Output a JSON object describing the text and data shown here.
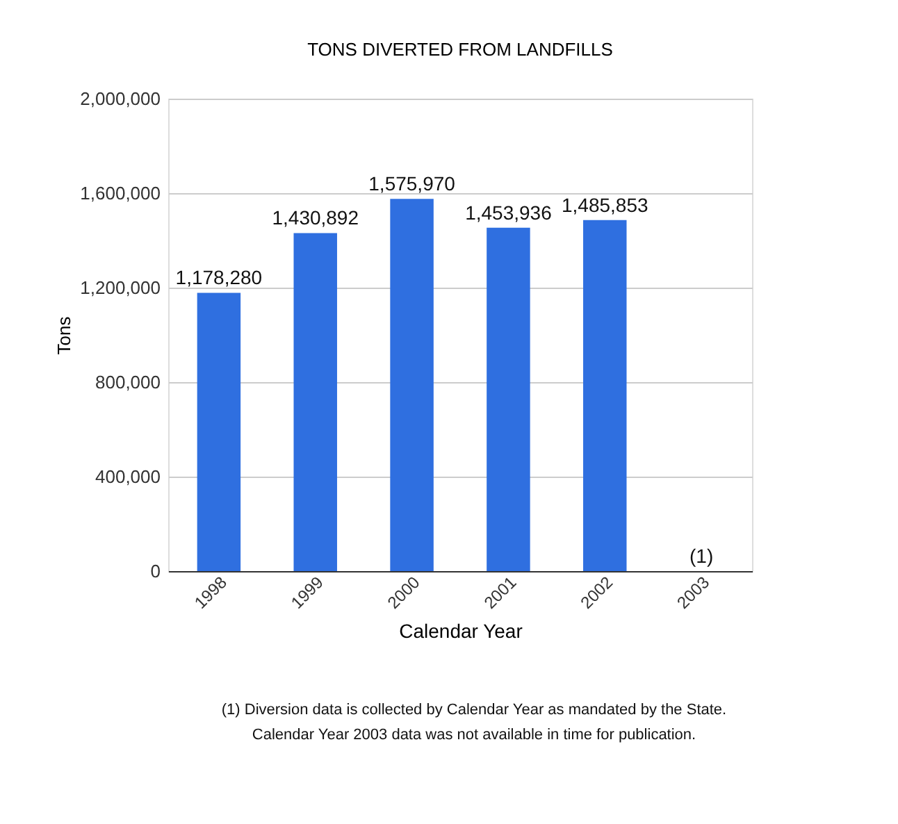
{
  "chart_data": {
    "type": "bar",
    "title": "TONS DIVERTED FROM LANDFILLS",
    "xlabel": "Calendar Year",
    "ylabel": "Tons",
    "categories": [
      "1998",
      "1999",
      "2000",
      "2001",
      "2002",
      "2003"
    ],
    "values": [
      1178280,
      1430892,
      1575970,
      1453936,
      1485853,
      null
    ],
    "value_labels": [
      "1,178,280",
      "1,430,892",
      "1,575,970",
      "1,453,936",
      "1,485,853",
      "(1)"
    ],
    "color": "#2f6fe0",
    "ylim": [
      0,
      2000000
    ],
    "yticks": [
      0,
      {
        "value": 400000,
        "label": "400,000"
      },
      {
        "value": 800000,
        "label": "800,000"
      },
      {
        "value": 1200000,
        "label": "1,200,000"
      },
      {
        "value": 1600000,
        "label": "1,600,000"
      },
      {
        "value": 2000000,
        "label": "2,000,000"
      }
    ],
    "grid": "y",
    "annotations": [
      "(1) Diversion data is collected by Calendar Year as mandated by the State.",
      "Calendar Year 2003 data was not available in time for publication."
    ]
  }
}
